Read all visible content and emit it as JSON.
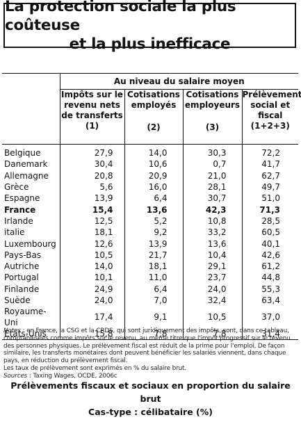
{
  "title": {
    "line1": "La protection sociale la plus coûteuse",
    "line2": "et la plus inefficace"
  },
  "table": {
    "group_header": "Au niveau du salaire moyen",
    "columns": [
      {
        "label": "Impôts sur le revenu nets de transferts",
        "num": "(1)"
      },
      {
        "label": "Cotisations employés",
        "num": "(2)"
      },
      {
        "label": "Cotisations employeurs",
        "num": "(3)"
      },
      {
        "label": "Prélèvement social et fiscal",
        "num": "(1+2+3)"
      }
    ],
    "rows": [
      {
        "country": "Belgique",
        "v1": "27,9",
        "v2": "14,0",
        "v3": "30,3",
        "v4": "72,2"
      },
      {
        "country": "Danemark",
        "v1": "30,4",
        "v2": "10,6",
        "v3": "0,7",
        "v4": "41,7"
      },
      {
        "country": "Allemagne",
        "v1": "20,8",
        "v2": "20,9",
        "v3": "21,0",
        "v4": "62,7"
      },
      {
        "country": "Grèce",
        "v1": "5,6",
        "v2": "16,0",
        "v3": "28,1",
        "v4": "49,7"
      },
      {
        "country": "Espagne",
        "v1": "13,9",
        "v2": "6,4",
        "v3": "30,7",
        "v4": "51,0"
      },
      {
        "country": "France",
        "v1": "15,4",
        "v2": "13,6",
        "v3": "42,3",
        "v4": "71,3"
      },
      {
        "country": "Irlande",
        "v1": "12,5",
        "v2": "5,2",
        "v3": "10,8",
        "v4": "28,5"
      },
      {
        "country": "italie",
        "v1": "18,1",
        "v2": "9,2",
        "v3": "33,2",
        "v4": "60,5"
      },
      {
        "country": "Luxembourg",
        "v1": "12,6",
        "v2": "13,9",
        "v3": "13,6",
        "v4": "40,1"
      },
      {
        "country": "Pays-Bas",
        "v1": "10,5",
        "v2": "21,7",
        "v3": "10,4",
        "v4": "42,6"
      },
      {
        "country": "Autriche",
        "v1": "14,0",
        "v2": "18,1",
        "v3": "29,1",
        "v4": "61,2"
      },
      {
        "country": "Portugal",
        "v1": "10,1",
        "v2": "11,0",
        "v3": "23,7",
        "v4": "44,8"
      },
      {
        "country": "Finlande",
        "v1": "24,9",
        "v2": "6,4",
        "v3": "24,0",
        "v4": "55,3"
      },
      {
        "country": "Suède",
        "v1": "24,0",
        "v2": "7,0",
        "v3": "32,4",
        "v4": "63,4"
      },
      {
        "country": "Royaume-Uni",
        "v1": "17,4",
        "v2": "9,1",
        "v3": "10,5",
        "v4": "37,0"
      },
      {
        "country": "États-Unis",
        "v1": "15,8",
        "v2": "7,8",
        "v3": "7,8",
        "v4": "31,4"
      }
    ]
  },
  "notes": {
    "notes_label": "Notes",
    "notes_text": " : en France, la CSG et la CRDS, qui sont juridiquement des impôts, sont, dans ce tableau, comptabilisées comme impôts sur le revenu, au même titre que l'impôt progressif sur le revenu des personnes physiques. Le prélèvement fiscal est réduit de la prime pour l'emploi. De façon similaire, les transferts monétaires dont peuvent bénéficier les salariés viennent, dans chaque pays, en réduction du prélèvement fiscal.",
    "line2": "Les taux de prélèvement sont exprimés en % du salaire brut.",
    "sources_label": "Sources",
    "sources_text": " : Taxing Wages, OCDE, 2006c"
  },
  "caption": {
    "line1": "Prélèvements fiscaux et sociaux en proportion du salaire brut",
    "line2": "Cas-type : célibataire (%)"
  }
}
